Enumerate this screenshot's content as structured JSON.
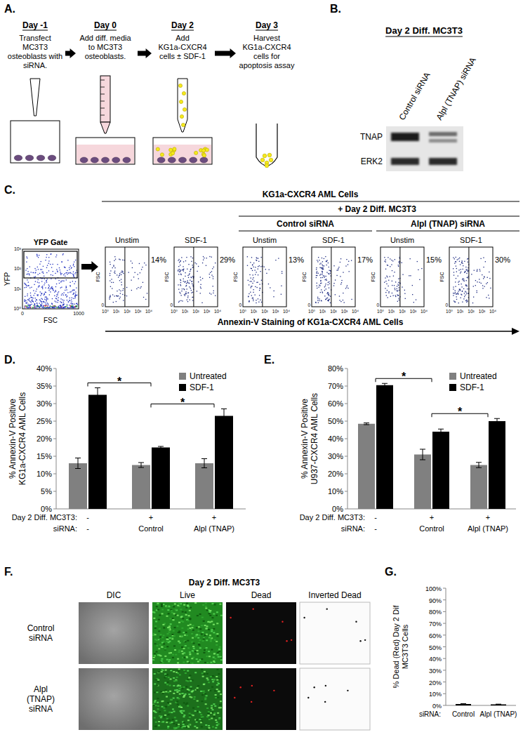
{
  "panels": {
    "A": {
      "label": "A.",
      "steps": [
        {
          "day": "Day -1",
          "text": "Transfect MC3T3 osteoblasts with siRNA."
        },
        {
          "day": "Day 0",
          "text": "Add diff. media to MC3T3 osteoblasts."
        },
        {
          "day": "Day 2",
          "text": "Add KG1a-CXCR4 cells ± SDF-1"
        },
        {
          "day": "Day 3",
          "text": "Harvest KG1a-CXCR4 cells for apoptosis assay"
        }
      ]
    },
    "B": {
      "label": "B.",
      "title": "Day 2 Diff. MC3T3",
      "lanes": [
        "Control siRNA",
        "Alpl (TNAP) siRNA"
      ],
      "rows": [
        "TNAP",
        "ERK2"
      ]
    },
    "C": {
      "label": "C.",
      "header": "KG1a-CXCR4 AML Cells",
      "coculture": "+ Day 2 Diff. MC3T3",
      "groups": [
        "Control siRNA",
        "Alpl (TNAP) siRNA"
      ],
      "gate": {
        "title": "YFP Gate",
        "y_label": "YFP",
        "x_label": "FSC",
        "y_ticks": [
          "10⁰",
          "10¹",
          "10²",
          "10³"
        ],
        "x_ticks": [
          "0",
          "1000"
        ]
      },
      "plots": [
        {
          "condition": "Unstim",
          "percent": "14%"
        },
        {
          "condition": "SDF-1",
          "percent": "29%"
        },
        {
          "condition": "Unstim",
          "percent": "13%"
        },
        {
          "condition": "SDF-1",
          "percent": "17%"
        },
        {
          "condition": "Unstim",
          "percent": "15%"
        },
        {
          "condition": "SDF-1",
          "percent": "30%"
        }
      ],
      "plot_y_label": "FSC",
      "plot_y_ticks": [
        "0"
      ],
      "plot_x_ticks": [
        "10⁰",
        "10¹",
        "10²",
        "10³",
        "10⁴"
      ],
      "x_label": "Annexin-V Staining of KG1a-CXCR4 AML Cells"
    },
    "F": {
      "label": "F.",
      "title": "Day 2 Diff. MC3T3",
      "columns": [
        "DIC",
        "Live",
        "Dead",
        "Inverted Dead"
      ],
      "rows": [
        "Control siRNA",
        "Alpl (TNAP) siRNA"
      ]
    }
  },
  "chart_data": [
    {
      "type": "bar",
      "panel_label": "D.",
      "y_label": "% Annexin-V Positive KG1a-CXCR4 AML Cells",
      "category_rows": [
        "Day 2 Diff. MC3T3:",
        "siRNA:"
      ],
      "categories": [
        [
          "-",
          "-"
        ],
        [
          "+",
          "Control"
        ],
        [
          "+",
          "Alpl (TNAP)"
        ]
      ],
      "series": [
        {
          "name": "Untreated",
          "color": "#808080",
          "values": [
            13,
            12.5,
            13
          ],
          "errors": [
            1.5,
            0.7,
            1.3
          ]
        },
        {
          "name": "SDF-1",
          "color": "#000000",
          "values": [
            32.5,
            17.5,
            26.5
          ],
          "errors": [
            2,
            0.3,
            2
          ]
        }
      ],
      "ylim": [
        0,
        40
      ],
      "yticks": [
        {
          "value": 0,
          "label": "0%"
        },
        {
          "value": 5,
          "label": "5%"
        },
        {
          "value": 10,
          "label": "10%"
        },
        {
          "value": 15,
          "label": "15%"
        },
        {
          "value": 20,
          "label": "20%"
        },
        {
          "value": 25,
          "label": "25%"
        },
        {
          "value": 30,
          "label": "30%"
        },
        {
          "value": 35,
          "label": "35%"
        },
        {
          "value": 40,
          "label": "40%"
        }
      ],
      "legend": "upper right",
      "significance": [
        {
          "label": "*",
          "from": 0,
          "to": 1
        },
        {
          "label": "*",
          "from": 1,
          "to": 2
        }
      ]
    },
    {
      "type": "bar",
      "panel_label": "E.",
      "y_label": "% Annexin-V Positive U937-CXCR4 AML Cells",
      "category_rows": [
        "Day 2 Diff. MC3T3:",
        "siRNA:"
      ],
      "categories": [
        [
          "-",
          "-"
        ],
        [
          "+",
          "Control"
        ],
        [
          "+",
          "Alpl (TNAP)"
        ]
      ],
      "series": [
        {
          "name": "Untreated",
          "color": "#808080",
          "values": [
            48.5,
            31,
            25
          ],
          "errors": [
            0.5,
            3,
            1.5
          ]
        },
        {
          "name": "SDF-1",
          "color": "#000000",
          "values": [
            70.5,
            44,
            50
          ],
          "errors": [
            1,
            1.5,
            1.5
          ]
        }
      ],
      "ylim": [
        0,
        80
      ],
      "yticks": [
        {
          "value": 0,
          "label": "0%"
        },
        {
          "value": 10,
          "label": "10%"
        },
        {
          "value": 20,
          "label": "20%"
        },
        {
          "value": 30,
          "label": "30%"
        },
        {
          "value": 40,
          "label": "40%"
        },
        {
          "value": 50,
          "label": "50%"
        },
        {
          "value": 60,
          "label": "60%"
        },
        {
          "value": 70,
          "label": "70%"
        },
        {
          "value": 80,
          "label": "80%"
        }
      ],
      "legend": "upper right",
      "significance": [
        {
          "label": "*",
          "from": 0,
          "to": 1
        },
        {
          "label": "*",
          "from": 1,
          "to": 2
        }
      ]
    },
    {
      "type": "bar",
      "panel_label": "G.",
      "y_label": "% Dead (Red) Day 2 Dif MC3T3 Cells",
      "category_rows": [
        "siRNA:"
      ],
      "categories": [
        [
          "Control"
        ],
        [
          "Alpl (TNAP)"
        ]
      ],
      "values": [
        1.2,
        0.9
      ],
      "errors": [
        0.3,
        0.2
      ],
      "color": "#000000",
      "ylim": [
        0,
        100
      ],
      "yticks": [
        {
          "value": 0,
          "label": "0%"
        },
        {
          "value": 10,
          "label": "10%"
        },
        {
          "value": 20,
          "label": "20%"
        },
        {
          "value": 30,
          "label": "30%"
        },
        {
          "value": 40,
          "label": "40%"
        },
        {
          "value": 50,
          "label": "50%"
        },
        {
          "value": 60,
          "label": "60%"
        },
        {
          "value": 70,
          "label": "70%"
        },
        {
          "value": 80,
          "label": "80%"
        },
        {
          "value": 90,
          "label": "90%"
        },
        {
          "value": 100,
          "label": "100%"
        }
      ]
    }
  ]
}
